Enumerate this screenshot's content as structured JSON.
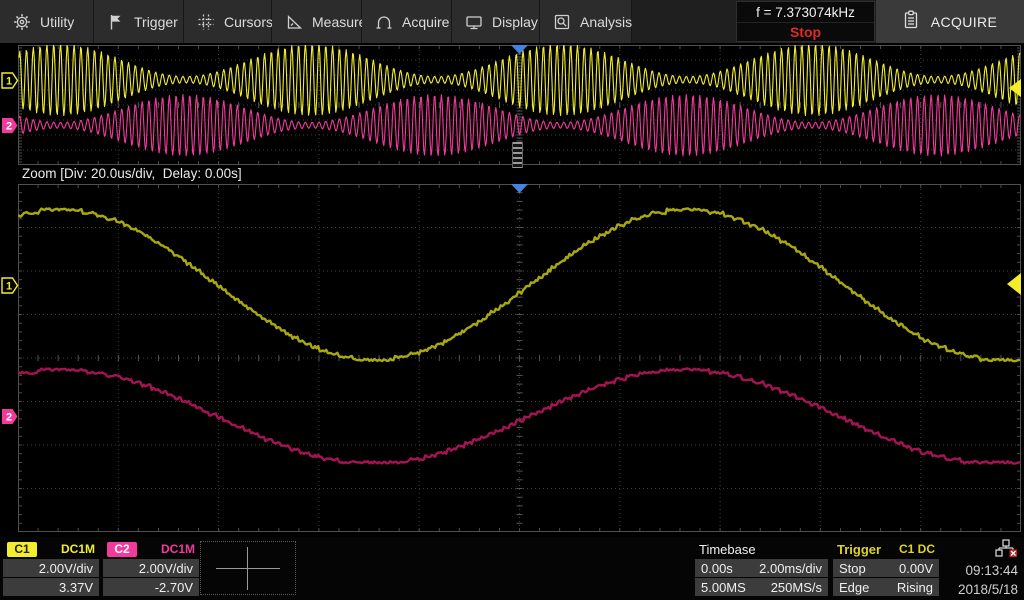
{
  "menu": {
    "items": [
      {
        "label": "Utility",
        "icon": "gear-icon"
      },
      {
        "label": "Trigger",
        "icon": "flag-icon"
      },
      {
        "label": "Cursors",
        "icon": "cursors-grid-icon"
      },
      {
        "label": "Measure",
        "icon": "set-square-icon"
      },
      {
        "label": "Acquire",
        "icon": "arch-icon"
      },
      {
        "label": "Display",
        "icon": "monitor-icon"
      },
      {
        "label": "Analysis",
        "icon": "magnifier-doc-icon"
      }
    ]
  },
  "freq_counter": {
    "label": "f = 7.373074kHz",
    "status": "Stop",
    "status_color": "#e02a2a"
  },
  "acquire_button": {
    "label": "ACQUIRE"
  },
  "zoom_label": "Zoom [Div: 20.0us/div,  Delay: 0.00s]",
  "channels": [
    {
      "id": "C1",
      "marker": "1",
      "coupling": "DC1M",
      "scale": "2.00V/div",
      "offset": "3.37V",
      "color": "#f2ee2e",
      "dim_color": "#a9a90f"
    },
    {
      "id": "C2",
      "marker": "2",
      "coupling": "DC1M",
      "scale": "2.00V/div",
      "offset": "-2.70V",
      "color": "#f23a9c",
      "dim_color": "#a51452"
    }
  ],
  "timebase_panel": {
    "title": "Timebase",
    "delay": "0.00s",
    "scale": "2.00ms/div",
    "memory": "5.00MS",
    "sample_rate": "250MS/s"
  },
  "trigger_panel": {
    "title": "Trigger",
    "source": "C1 DC",
    "mode": "Stop",
    "level": "0.00V",
    "type": "Edge",
    "slope": "Rising",
    "marker_color": "#4284e2"
  },
  "clock": {
    "time": "09:13:44",
    "date": "2018/5/18"
  },
  "chart_data": [
    {
      "id": "main-window",
      "type": "line",
      "timebase": "2.00ms/div",
      "seconds_per_div": 0.002,
      "x_divisions": 10,
      "y_divisions": 8,
      "grid": "dotted",
      "series": [
        {
          "name": "C1",
          "signal": "am_modulated",
          "carrier_freq_khz": 7.373,
          "volts_per_div": 2.0,
          "offset_volts": 3.37,
          "envelope_period_div": 2.5,
          "envelope_peak_div": -4.58,
          "max_amplitude_div": 2.4,
          "min_amplitude_div": 0.22,
          "color": "#f2ee2e"
        },
        {
          "name": "C2",
          "signal": "am_modulated",
          "carrier_freq_khz": 7.373,
          "volts_per_div": 2.0,
          "offset_volts": -2.7,
          "envelope_period_div": 2.5,
          "envelope_peak_div": -3.34,
          "max_amplitude_div": 2.05,
          "min_amplitude_div": 0.2,
          "color": "#f23a9c"
        }
      ]
    },
    {
      "id": "zoom-window",
      "type": "line",
      "timebase": "20.0us/div",
      "delay": "0.00s",
      "seconds_per_div": 2e-05,
      "x_divisions": 10,
      "y_divisions": 8,
      "grid": "dotted",
      "series": [
        {
          "name": "C1",
          "signal": "sine",
          "volts_per_div": 2.0,
          "offset_volts": 3.37,
          "amplitude_div": 1.73,
          "period_div": 6.25,
          "peak_at_div": -4.58,
          "color": "#a9a90f"
        },
        {
          "name": "C2",
          "signal": "sine",
          "volts_per_div": 2.0,
          "offset_volts": -2.7,
          "amplitude_div": 1.08,
          "period_div": 6.2,
          "peak_at_div": -4.56,
          "color": "#a51452"
        }
      ]
    }
  ]
}
